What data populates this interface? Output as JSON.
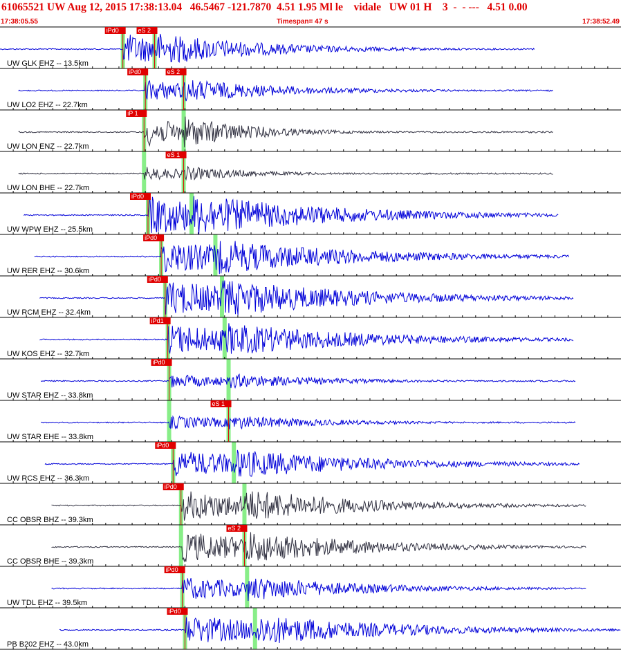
{
  "header": {
    "title": "61065521 UW Aug 12, 2015 17:38:13.04   46.5467 -121.7870  4.51 1.95 Ml le    vidale   UW 01 H    3  -  - ---   4.51 0.00",
    "start_time": "17:38:05.55",
    "timespan": "Timespan=  47 s",
    "end_time": "17:38:52.49"
  },
  "colors": {
    "title": "#e00000",
    "trace_blue": "#0000d8",
    "trace_dark": "#303040",
    "pick_box": "#e00000",
    "pick_window": "#88ee88",
    "grid": "#000000"
  },
  "chart_data": {
    "type": "line",
    "x_unit": "time (s)",
    "x_range_seconds": [
      0,
      47
    ],
    "start_time": "17:38:05.55",
    "end_time": "17:38:52.49",
    "tick_interval_seconds": 1,
    "traces": [
      {
        "label": "UW GLK EHZ -- 13.5km",
        "color": "blue",
        "p_pick": "iPd0",
        "p_time_s": 9.3,
        "s_pick": "eS 2",
        "s_time_s": 11.7,
        "start_s": 0,
        "end_s": 40.5,
        "amp": 0.8,
        "decay": 9
      },
      {
        "label": "UW LO2 EHZ -- 22.7km",
        "color": "blue",
        "p_pick": "iPd0",
        "p_time_s": 11.0,
        "s_pick": "eS 2",
        "s_time_s": 13.9,
        "start_s": 1.4,
        "end_s": 41.9,
        "amp": 0.55,
        "decay": 9
      },
      {
        "label": "UW LON ENZ -- 22.7km",
        "color": "dark",
        "p_pick": "iP 1",
        "p_time_s": 10.9,
        "s_pick": "",
        "s_time_s": 13.9,
        "start_s": 1.4,
        "end_s": 41.9,
        "amp": 0.75,
        "decay": 6
      },
      {
        "label": "UW LON BHE -- 22.7km",
        "color": "dark",
        "p_pick": "",
        "p_time_s": 10.9,
        "s_pick": "eS 1",
        "s_time_s": 13.9,
        "start_s": 1.4,
        "end_s": 41.9,
        "amp": 0.35,
        "decay": 6
      },
      {
        "label": "UW WPW EHZ -- 25.5km",
        "color": "blue",
        "p_pick": "iPd0",
        "p_time_s": 11.2,
        "s_pick": "",
        "s_time_s": 14.5,
        "start_s": 1.8,
        "end_s": 42.3,
        "amp": 1.0,
        "decay": 12
      },
      {
        "label": "UW RER EHZ -- 30.6km",
        "color": "blue",
        "p_pick": "iPd0",
        "p_time_s": 12.2,
        "s_pick": "",
        "s_time_s": 16.3,
        "start_s": 2.6,
        "end_s": 43.1,
        "amp": 0.85,
        "decay": 12
      },
      {
        "label": "UW RCM EHZ -- 32.4km",
        "color": "blue",
        "p_pick": "iPd0",
        "p_time_s": 12.5,
        "s_pick": "",
        "s_time_s": 16.8,
        "start_s": 3.0,
        "end_s": 43.4,
        "amp": 0.9,
        "decay": 12
      },
      {
        "label": "UW KOS EHZ -- 32.7km",
        "color": "blue",
        "p_pick": "iPd1",
        "p_time_s": 12.7,
        "s_pick": "",
        "s_time_s": 17.0,
        "start_s": 3.0,
        "end_s": 43.4,
        "amp": 0.8,
        "decay": 12
      },
      {
        "label": "UW STAR EHZ -- 33.8km",
        "color": "blue",
        "p_pick": "iPd0",
        "p_time_s": 12.8,
        "s_pick": "",
        "s_time_s": 17.3,
        "start_s": 3.1,
        "end_s": 43.6,
        "amp": 0.35,
        "decay": 9
      },
      {
        "label": "UW STAR EHE -- 33.8km",
        "color": "blue",
        "p_pick": "",
        "p_time_s": 12.8,
        "s_pick": "eS 1",
        "s_time_s": 17.3,
        "start_s": 3.1,
        "end_s": 43.6,
        "amp": 0.35,
        "decay": 9
      },
      {
        "label": "UW RCS EHZ -- 36.3km",
        "color": "blue",
        "p_pick": "iPd0",
        "p_time_s": 13.1,
        "s_pick": "",
        "s_time_s": 17.7,
        "start_s": 3.4,
        "end_s": 43.9,
        "amp": 0.7,
        "decay": 12
      },
      {
        "label": "CC OBSR BHZ -- 39.3km",
        "color": "dark",
        "p_pick": "iPd0",
        "p_time_s": 13.7,
        "s_pick": "",
        "s_time_s": 18.5,
        "start_s": 3.9,
        "end_s": 44.4,
        "amp": 0.8,
        "decay": 10
      },
      {
        "label": "CC OBSR BHE -- 39.3km",
        "color": "dark",
        "p_pick": "",
        "p_time_s": 13.7,
        "s_pick": "eS 2",
        "s_time_s": 18.5,
        "start_s": 3.9,
        "end_s": 44.4,
        "amp": 0.8,
        "decay": 10
      },
      {
        "label": "UW TDL EHZ -- 39.5km",
        "color": "blue",
        "p_pick": "iPd0",
        "p_time_s": 13.8,
        "s_pick": "",
        "s_time_s": 18.7,
        "start_s": 3.9,
        "end_s": 44.4,
        "amp": 0.6,
        "decay": 10
      },
      {
        "label": "PB B202 EHZ -- 43.0km",
        "color": "blue",
        "p_pick": "iPd0",
        "p_time_s": 14.0,
        "s_pick": "",
        "s_time_s": 19.3,
        "start_s": 4.5,
        "end_s": 47.0,
        "amp": 0.75,
        "decay": 12
      }
    ]
  }
}
